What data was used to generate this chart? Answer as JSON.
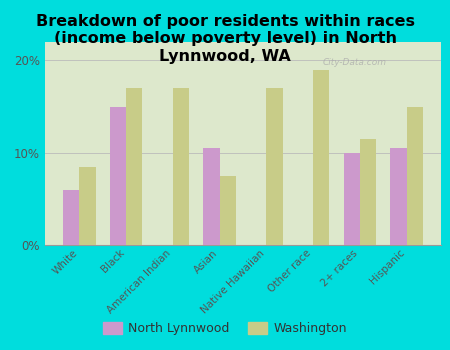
{
  "title": "Breakdown of poor residents within races\n(income below poverty level) in North\nLynnwood, WA",
  "categories": [
    "White",
    "Black",
    "American Indian",
    "Asian",
    "Native Hawaiian",
    "Other race",
    "2+ races",
    "Hispanic"
  ],
  "north_lynnwood": [
    6.0,
    15.0,
    0.0,
    10.5,
    0.0,
    0.0,
    10.0,
    10.5
  ],
  "washington": [
    8.5,
    17.0,
    17.0,
    7.5,
    17.0,
    19.0,
    11.5,
    15.0
  ],
  "nl_color": "#cc99cc",
  "wa_color": "#c8cc88",
  "bg_color": "#00dddd",
  "plot_bg_color": "#dde8cc",
  "title_fontsize": 11.5,
  "tick_label_fontsize": 7.5,
  "yticks": [
    0,
    10,
    20
  ],
  "ylim": [
    0,
    22
  ],
  "legend_labels": [
    "North Lynnwood",
    "Washington"
  ],
  "watermark": "City-Data.com"
}
